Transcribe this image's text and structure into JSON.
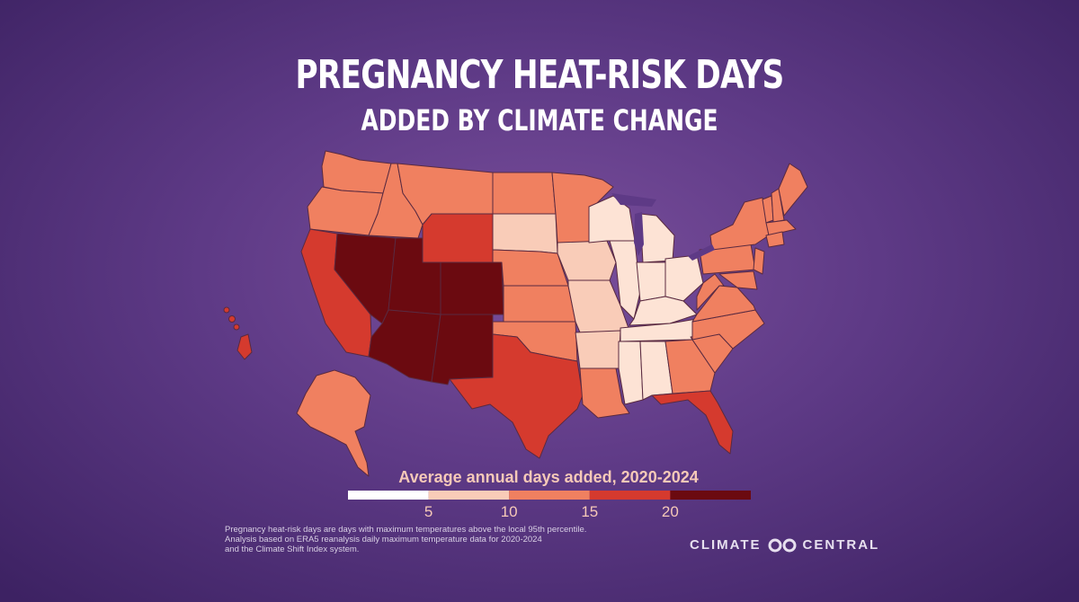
{
  "title": "PREGNANCY HEAT-RISK DAYS",
  "subtitle": "ADDED BY CLIMATE CHANGE",
  "legend": {
    "title": "Average annual days added, 2020-2024",
    "ticks": [
      "5",
      "10",
      "15",
      "20"
    ],
    "bins": [
      {
        "range": "0-5",
        "color": "#ffffff"
      },
      {
        "range": "5-10",
        "color": "#f9ccb8"
      },
      {
        "range": "10-15",
        "color": "#f08060"
      },
      {
        "range": "15-20",
        "color": "#d53a2e"
      },
      {
        "range": "20+",
        "color": "#6b0a10"
      }
    ]
  },
  "map_colors": {
    "west_darkest": "#6b0a10",
    "red": "#d53a2e",
    "orange": "#f08060",
    "light": "#f9ccb8",
    "lightest": "#fde3d5",
    "border": "#5a2a40"
  },
  "footnote": [
    "Pregnancy heat-risk days are days with maximum temperatures above the local 95th percentile.",
    "Analysis based on ERA5 reanalysis daily maximum temperature data for 2020-2024",
    "and the Climate Shift Index system."
  ],
  "logo": {
    "left": "CLIMATE",
    "right": "CENTRAL"
  }
}
